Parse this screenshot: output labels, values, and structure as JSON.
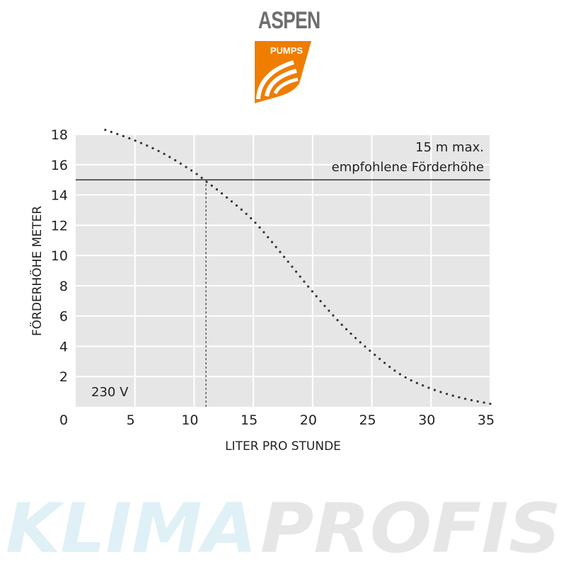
{
  "logo": {
    "name": "ASPEN",
    "sub": "PUMPS",
    "brand_color": "#ef7d00",
    "text_color": "#6d6e70"
  },
  "watermark": {
    "part1": "KLIMA",
    "part2": "PROFIS",
    "color1": "#dff0f6",
    "color2": "#e6e6e6"
  },
  "chart_data": {
    "type": "line",
    "xlabel": "LITER PRO STUNDE",
    "ylabel": "FÖRDERHÖHE METER",
    "xlim": [
      0,
      35
    ],
    "ylim": [
      0,
      18
    ],
    "x_ticks": [
      "0",
      "5",
      "10",
      "15",
      "20",
      "25",
      "30",
      "35"
    ],
    "y_ticks": [
      "2",
      "4",
      "6",
      "8",
      "10",
      "12",
      "14",
      "16",
      "18"
    ],
    "grid": true,
    "background": "#e6e6e6",
    "series": [
      {
        "style": "dotted",
        "x": [
          2.5,
          5,
          7.5,
          10,
          11,
          12.5,
          15,
          17.5,
          20,
          22.5,
          25,
          27.5,
          30,
          32.5,
          35
        ],
        "y": [
          18.3,
          17.6,
          16.7,
          15.5,
          14.9,
          14.0,
          12.3,
          10.0,
          7.6,
          5.4,
          3.6,
          2.1,
          1.2,
          0.6,
          0.2
        ]
      }
    ],
    "reference_line": {
      "y": 15,
      "label_line1": "15 m max.",
      "label_line2": "empfohlene Förderhöhe"
    },
    "reference_vline": {
      "x": 11
    },
    "annotation": "230 V"
  }
}
